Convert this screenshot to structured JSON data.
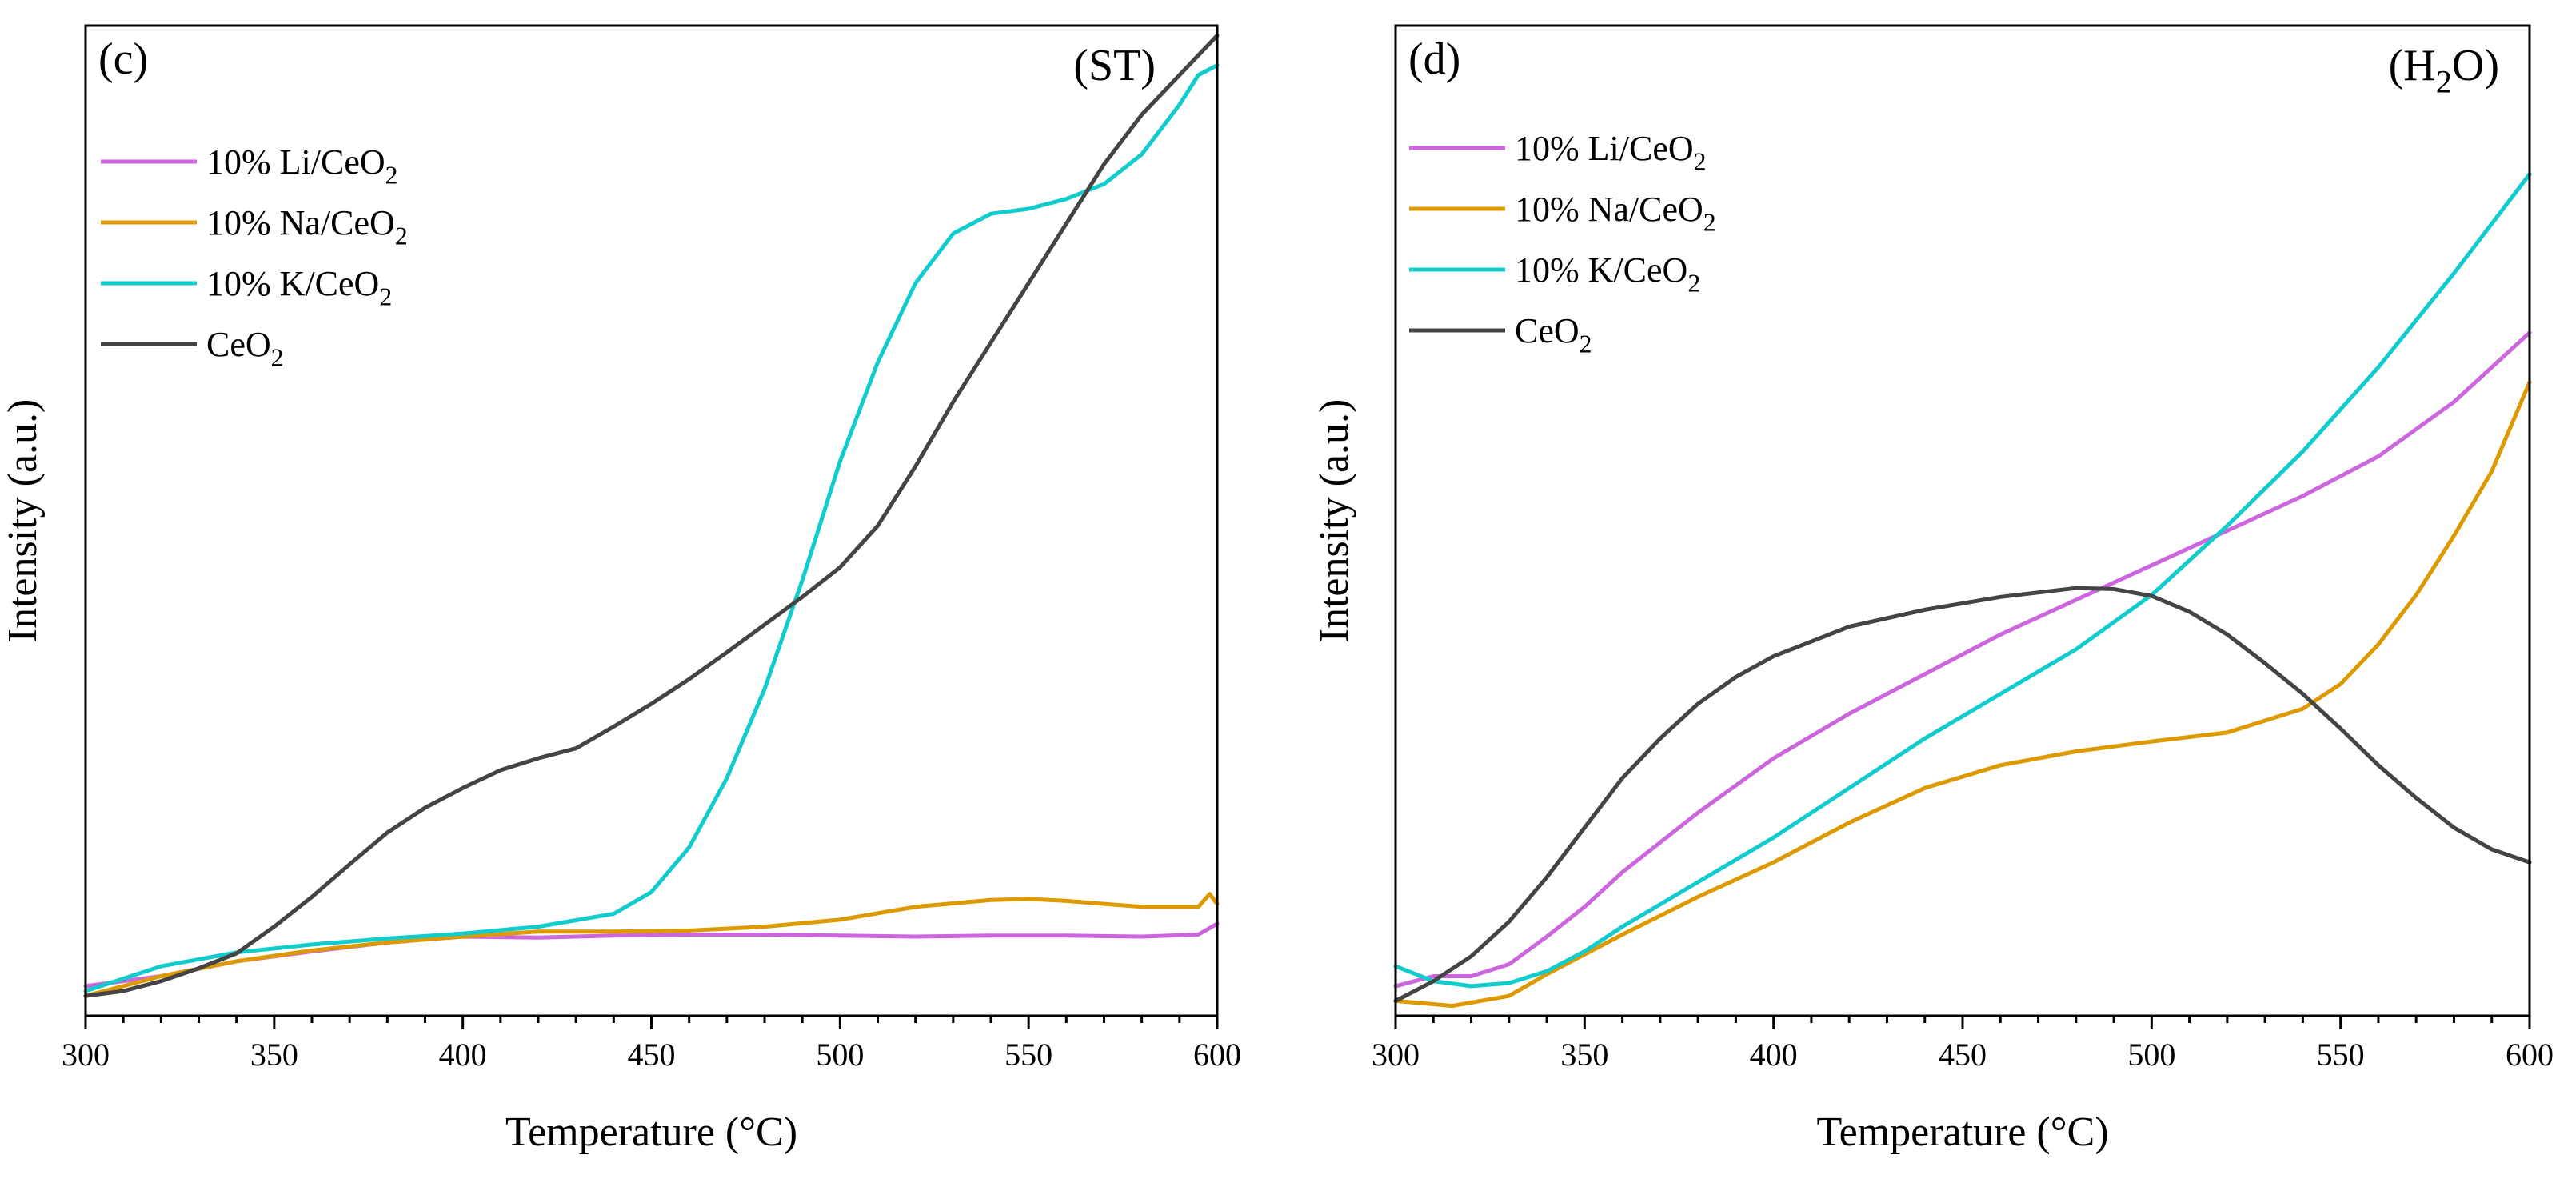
{
  "legend": {
    "series_labels": [
      {
        "base": "10% Li/CeO",
        "sub": "2"
      },
      {
        "base": "10% Na/CeO",
        "sub": "2"
      },
      {
        "base": "10% K/CeO",
        "sub": "2"
      },
      {
        "base": "CeO",
        "sub": "2"
      }
    ]
  },
  "colors": {
    "li": "#cc66dd",
    "na": "#dd9a00",
    "k": "#11cccc",
    "ceo2": "#444444"
  },
  "chart_data": [
    {
      "type": "line",
      "panel_label": "(c)",
      "condition": {
        "base": "(ST)",
        "sub": "",
        "tail": ""
      },
      "xlabel": "Temperature (°C)",
      "ylabel": "Intensity (a.u.)",
      "xlim": [
        300,
        600
      ],
      "ylim": [
        0,
        100
      ],
      "x_ticks": [
        300,
        350,
        400,
        450,
        500,
        550,
        600
      ],
      "x_minor_step": 10,
      "y_ticks_shown": false,
      "series": [
        {
          "name": "10% Li/CeO2",
          "color_key": "li",
          "points": [
            [
              300,
              3
            ],
            [
              320,
              4
            ],
            [
              340,
              5.5
            ],
            [
              360,
              6.5
            ],
            [
              380,
              7.4
            ],
            [
              400,
              8
            ],
            [
              420,
              7.9
            ],
            [
              440,
              8.1
            ],
            [
              460,
              8.2
            ],
            [
              480,
              8.2
            ],
            [
              500,
              8.1
            ],
            [
              520,
              8
            ],
            [
              540,
              8.1
            ],
            [
              560,
              8.1
            ],
            [
              580,
              8
            ],
            [
              595,
              8.2
            ],
            [
              600,
              9.3
            ]
          ]
        },
        {
          "name": "10% Na/CeO2",
          "color_key": "na",
          "points": [
            [
              300,
              2
            ],
            [
              320,
              4
            ],
            [
              340,
              5.5
            ],
            [
              360,
              6.6
            ],
            [
              380,
              7.4
            ],
            [
              400,
              8
            ],
            [
              420,
              8.5
            ],
            [
              440,
              8.5
            ],
            [
              460,
              8.6
            ],
            [
              480,
              9
            ],
            [
              500,
              9.7
            ],
            [
              520,
              11
            ],
            [
              540,
              11.7
            ],
            [
              550,
              11.8
            ],
            [
              560,
              11.6
            ],
            [
              580,
              11
            ],
            [
              595,
              11
            ],
            [
              598,
              12.3
            ],
            [
              600,
              11.3
            ]
          ]
        },
        {
          "name": "10% K/CeO2",
          "color_key": "k",
          "points": [
            [
              300,
              2.5
            ],
            [
              320,
              5
            ],
            [
              340,
              6.4
            ],
            [
              360,
              7.2
            ],
            [
              380,
              7.8
            ],
            [
              400,
              8.3
            ],
            [
              420,
              9
            ],
            [
              440,
              10.3
            ],
            [
              450,
              12.5
            ],
            [
              460,
              17
            ],
            [
              470,
              24
            ],
            [
              480,
              33
            ],
            [
              490,
              44
            ],
            [
              500,
              56
            ],
            [
              510,
              66
            ],
            [
              520,
              74
            ],
            [
              530,
              79
            ],
            [
              540,
              81
            ],
            [
              550,
              81.5
            ],
            [
              560,
              82.5
            ],
            [
              570,
              84
            ],
            [
              580,
              87
            ],
            [
              590,
              92
            ],
            [
              595,
              95
            ],
            [
              600,
              96
            ]
          ]
        },
        {
          "name": "CeO2",
          "color_key": "ceo2",
          "points": [
            [
              300,
              2
            ],
            [
              310,
              2.5
            ],
            [
              320,
              3.5
            ],
            [
              330,
              4.8
            ],
            [
              340,
              6.3
            ],
            [
              350,
              9
            ],
            [
              360,
              12
            ],
            [
              370,
              15.3
            ],
            [
              380,
              18.5
            ],
            [
              390,
              21
            ],
            [
              400,
              23
            ],
            [
              410,
              24.8
            ],
            [
              420,
              26
            ],
            [
              430,
              27
            ],
            [
              440,
              29.2
            ],
            [
              450,
              31.5
            ],
            [
              460,
              34
            ],
            [
              470,
              36.7
            ],
            [
              480,
              39.5
            ],
            [
              490,
              42.3
            ],
            [
              500,
              45.3
            ],
            [
              510,
              49.5
            ],
            [
              520,
              55.5
            ],
            [
              530,
              62
            ],
            [
              540,
              68
            ],
            [
              550,
              74
            ],
            [
              560,
              80
            ],
            [
              570,
              86
            ],
            [
              580,
              91
            ],
            [
              590,
              95
            ],
            [
              600,
              99
            ]
          ]
        }
      ]
    },
    {
      "type": "line",
      "panel_label": "(d)",
      "condition": {
        "base": "(H",
        "sub": "2",
        "tail": "O)"
      },
      "xlabel": "Temperature (°C)",
      "ylabel": "Intensity (a.u.)",
      "xlim": [
        300,
        600
      ],
      "ylim": [
        0,
        100
      ],
      "x_ticks": [
        300,
        350,
        400,
        450,
        500,
        550,
        600
      ],
      "x_minor_step": 10,
      "y_ticks_shown": false,
      "series": [
        {
          "name": "10% Li/CeO2",
          "color_key": "li",
          "points": [
            [
              300,
              3
            ],
            [
              310,
              4
            ],
            [
              320,
              4
            ],
            [
              330,
              5.2
            ],
            [
              340,
              8
            ],
            [
              350,
              11
            ],
            [
              360,
              14.5
            ],
            [
              380,
              20.5
            ],
            [
              400,
              26
            ],
            [
              420,
              30.5
            ],
            [
              440,
              34.5
            ],
            [
              460,
              38.5
            ],
            [
              480,
              42
            ],
            [
              500,
              45.5
            ],
            [
              520,
              49
            ],
            [
              540,
              52.5
            ],
            [
              560,
              56.5
            ],
            [
              580,
              62
            ],
            [
              600,
              69
            ]
          ]
        },
        {
          "name": "10% Na/CeO2",
          "color_key": "na",
          "points": [
            [
              300,
              1.5
            ],
            [
              315,
              1
            ],
            [
              330,
              2
            ],
            [
              340,
              4.2
            ],
            [
              360,
              8.2
            ],
            [
              380,
              12
            ],
            [
              400,
              15.5
            ],
            [
              420,
              19.5
            ],
            [
              440,
              23
            ],
            [
              460,
              25.3
            ],
            [
              480,
              26.7
            ],
            [
              500,
              27.7
            ],
            [
              520,
              28.6
            ],
            [
              540,
              31
            ],
            [
              550,
              33.5
            ],
            [
              560,
              37.5
            ],
            [
              570,
              42.5
            ],
            [
              580,
              48.5
            ],
            [
              590,
              55
            ],
            [
              600,
              64
            ]
          ]
        },
        {
          "name": "10% K/CeO2",
          "color_key": "k",
          "points": [
            [
              300,
              5
            ],
            [
              310,
              3.5
            ],
            [
              320,
              3
            ],
            [
              330,
              3.3
            ],
            [
              340,
              4.5
            ],
            [
              350,
              6.5
            ],
            [
              360,
              9
            ],
            [
              380,
              13.5
            ],
            [
              400,
              18
            ],
            [
              420,
              23
            ],
            [
              440,
              28
            ],
            [
              460,
              32.5
            ],
            [
              480,
              37
            ],
            [
              500,
              42.5
            ],
            [
              520,
              49.5
            ],
            [
              540,
              57
            ],
            [
              560,
              65.5
            ],
            [
              580,
              75
            ],
            [
              600,
              85
            ]
          ]
        },
        {
          "name": "CeO2",
          "color_key": "ceo2",
          "points": [
            [
              300,
              1.5
            ],
            [
              310,
              3.5
            ],
            [
              320,
              6
            ],
            [
              330,
              9.5
            ],
            [
              340,
              14
            ],
            [
              350,
              19
            ],
            [
              360,
              24
            ],
            [
              370,
              28
            ],
            [
              380,
              31.5
            ],
            [
              390,
              34.2
            ],
            [
              400,
              36.3
            ],
            [
              420,
              39.3
            ],
            [
              440,
              41
            ],
            [
              460,
              42.3
            ],
            [
              480,
              43.2
            ],
            [
              490,
              43.1
            ],
            [
              500,
              42.4
            ],
            [
              510,
              40.8
            ],
            [
              520,
              38.5
            ],
            [
              530,
              35.6
            ],
            [
              540,
              32.5
            ],
            [
              550,
              29
            ],
            [
              560,
              25.3
            ],
            [
              570,
              22
            ],
            [
              580,
              19
            ],
            [
              590,
              16.8
            ],
            [
              600,
              15.5
            ]
          ]
        }
      ]
    }
  ]
}
